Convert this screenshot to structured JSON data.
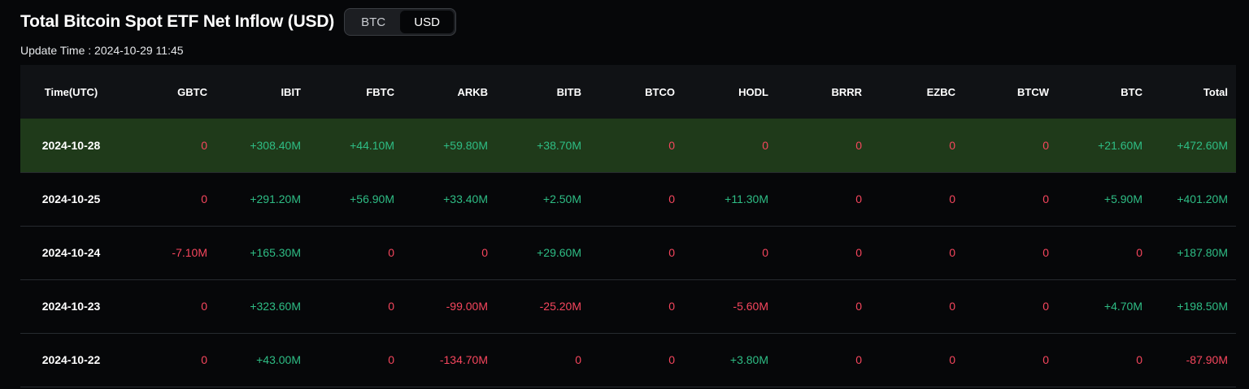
{
  "header": {
    "title": "Total Bitcoin Spot ETF Net Inflow (USD)",
    "toggle": {
      "options": [
        "BTC",
        "USD"
      ],
      "selected": "USD"
    }
  },
  "update_time": "Update Time : 2024-10-29 11:45",
  "table": {
    "columns": [
      "Time(UTC)",
      "GBTC",
      "IBIT",
      "FBTC",
      "ARKB",
      "BITB",
      "BTCO",
      "HODL",
      "BRRR",
      "EZBC",
      "BTCW",
      "BTC",
      "Total"
    ],
    "rows": [
      {
        "date": "2024-10-28",
        "highlight": true,
        "cells": [
          "0",
          "+308.40M",
          "+44.10M",
          "+59.80M",
          "+38.70M",
          "0",
          "0",
          "0",
          "0",
          "0",
          "+21.60M",
          "+472.60M"
        ]
      },
      {
        "date": "2024-10-25",
        "highlight": false,
        "cells": [
          "0",
          "+291.20M",
          "+56.90M",
          "+33.40M",
          "+2.50M",
          "0",
          "+11.30M",
          "0",
          "0",
          "0",
          "+5.90M",
          "+401.20M"
        ]
      },
      {
        "date": "2024-10-24",
        "highlight": false,
        "cells": [
          "-7.10M",
          "+165.30M",
          "0",
          "0",
          "+29.60M",
          "0",
          "0",
          "0",
          "0",
          "0",
          "0",
          "+187.80M"
        ]
      },
      {
        "date": "2024-10-23",
        "highlight": false,
        "cells": [
          "0",
          "+323.60M",
          "0",
          "-99.00M",
          "-25.20M",
          "0",
          "-5.60M",
          "0",
          "0",
          "0",
          "+4.70M",
          "+198.50M"
        ]
      },
      {
        "date": "2024-10-22",
        "highlight": false,
        "cells": [
          "0",
          "+43.00M",
          "0",
          "-134.70M",
          "0",
          "0",
          "+3.80M",
          "0",
          "0",
          "0",
          "0",
          "-87.90M"
        ]
      }
    ]
  },
  "colors": {
    "positive": "#2ebd85",
    "negative": "#f6465d",
    "highlight_row": "#1f3a1a",
    "header_bg": "#101215",
    "page_bg": "#060709"
  }
}
